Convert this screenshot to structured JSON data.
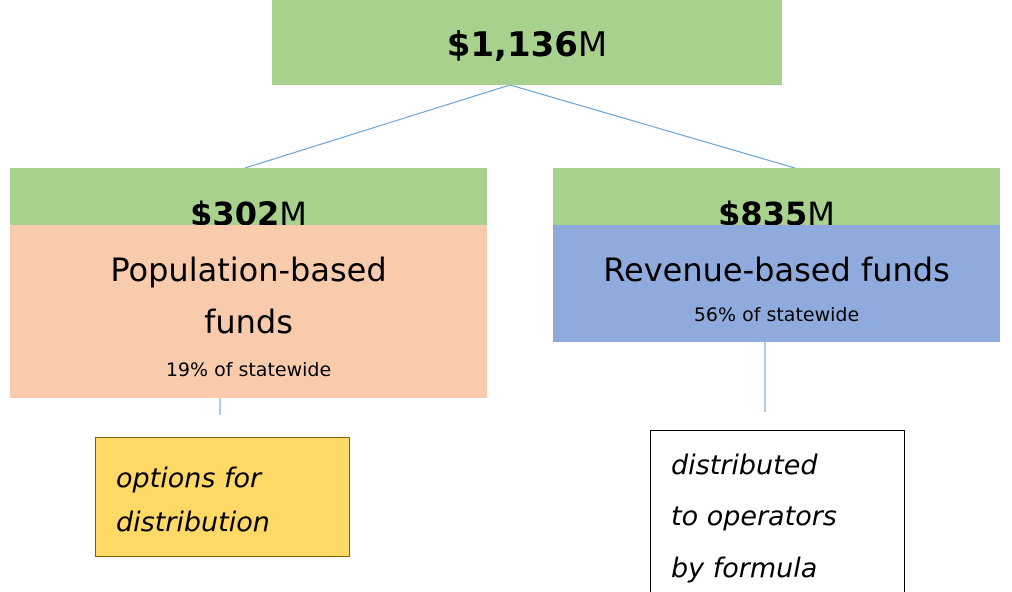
{
  "root": {
    "amount": "$1,136",
    "unit": "M"
  },
  "nodes": [
    {
      "amount": "$302",
      "unit": "M",
      "label_lines": [
        "Population-based",
        "funds"
      ],
      "note": "19% of statewide"
    },
    {
      "amount": "$835",
      "unit": "M",
      "label_lines": [
        "Revenue-based funds"
      ],
      "note": "56% of statewide"
    }
  ],
  "outcomes": [
    {
      "lines": [
        "options for",
        "distribution"
      ]
    },
    {
      "lines": [
        "distributed",
        "to operators",
        "by formula"
      ]
    }
  ]
}
